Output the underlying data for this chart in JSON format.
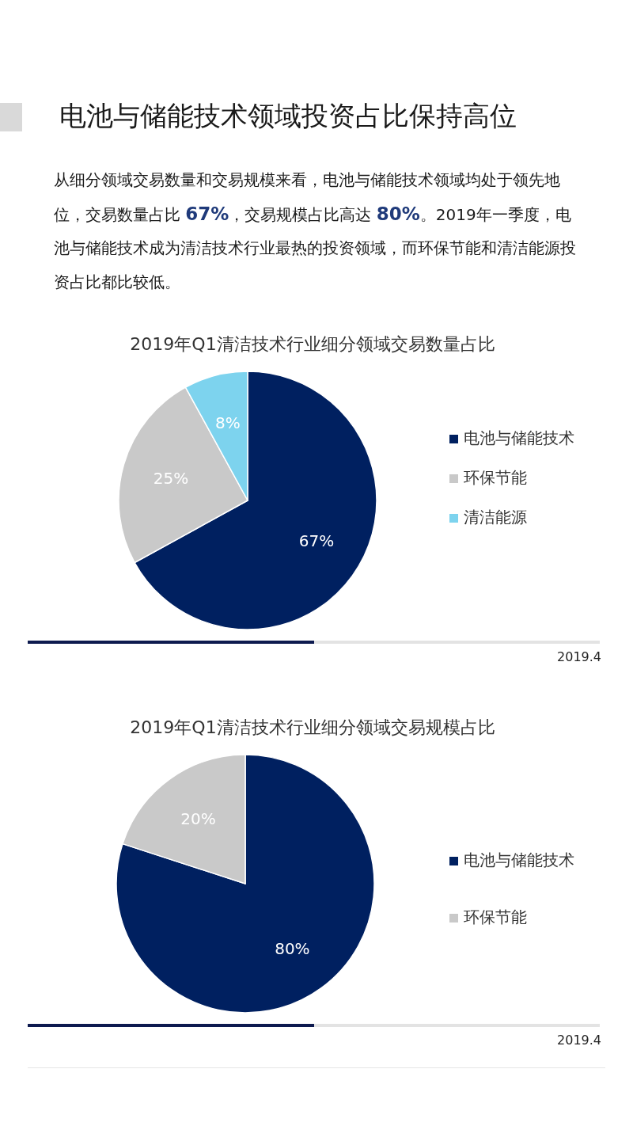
{
  "chart_data": [
    {
      "type": "other",
      "title": "电池与储能技术领域投资占比保持高位",
      "annotations": [
        "从细分领域交易数量和交易规模来看，电池与储能技术领域均处于领先地位，交易数量占比 **67%**，交易规模占比高达 **80%**。2019年一季度，电池与储能技术成为清洁技术行业最热的投资领域，而环保节能和清洁能源投资占比都比较低。"
      ]
    },
    {
      "type": "pie",
      "title": "2019年Q1清洁技术行业细分领域交易数量占比",
      "categories": [
        "电池与储能技术",
        "环保节能",
        "清洁能源"
      ],
      "values": [
        67,
        25,
        8
      ],
      "value_labels": [
        "67%",
        "25%",
        "8%"
      ],
      "colors": [
        "#002060",
        "#c9c9c9",
        "#7dd3ee"
      ],
      "data_labels": true,
      "legend": "right",
      "annotations": [
        "2019.4"
      ]
    },
    {
      "type": "pie",
      "title": "2019年Q1清洁技术行业细分领域交易规模占比",
      "categories": [
        "电池与储能技术",
        "环保节能"
      ],
      "values": [
        80,
        20
      ],
      "value_labels": [
        "80%",
        "20%"
      ],
      "colors": [
        "#002060",
        "#c9c9c9"
      ],
      "data_labels": true,
      "legend": "right",
      "annotations": [
        "2019.4"
      ]
    }
  ]
}
